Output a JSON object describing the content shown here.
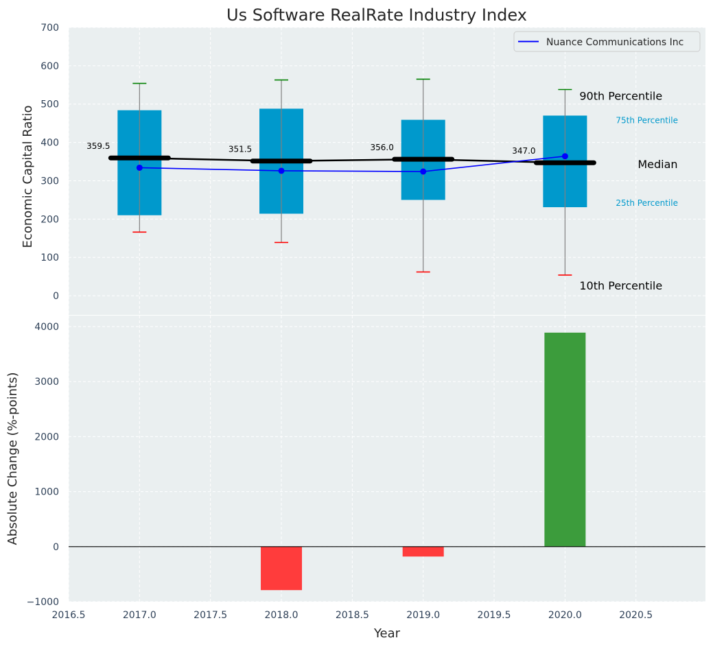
{
  "title": "Us Software RealRate Industry Index",
  "colors": {
    "panel_bg": "#EAEFF0",
    "box_fill": "#0099CC",
    "median_line": "#000000",
    "company_line": "#0000FF",
    "p90_cap": "#008000",
    "p10_cap": "#FF0000",
    "positive_bar": "#3C9C3C",
    "negative_bar": "#FF3C3C",
    "grid": "#FFFFFF",
    "tick_text": "#2E4057",
    "percentile_label_blue": "#0099CC"
  },
  "chart_data": [
    {
      "type": "box",
      "title": "Us Software RealRate Industry Index",
      "ylabel": "Economic Capital Ratio",
      "ylim": [
        -50,
        700
      ],
      "yticks": [
        "0",
        "100",
        "200",
        "300",
        "400",
        "500",
        "600",
        "700"
      ],
      "grid": true,
      "legend_placement": "top-right",
      "legend_entries": [
        "Nuance Communications Inc"
      ],
      "x": [
        2017,
        2018,
        2019,
        2020
      ],
      "percentiles": {
        "p10": [
          166,
          139,
          62,
          54
        ],
        "p25": [
          210,
          214,
          250,
          231
        ],
        "median": [
          359.5,
          351.5,
          356.0,
          347.0
        ],
        "p75": [
          484,
          488,
          459,
          470
        ],
        "p90": [
          554,
          563,
          565,
          538
        ]
      },
      "median_labels": [
        "359.5",
        "351.5",
        "356.0",
        "347.0"
      ],
      "series": [
        {
          "name": "Nuance Communications Inc",
          "values": [
            334,
            326,
            324,
            364
          ]
        }
      ],
      "annotations": {
        "p90": "90th Percentile",
        "p75": "75th Percentile",
        "median": "Median",
        "p25": "25th Percentile",
        "p10": "10th Percentile"
      }
    },
    {
      "type": "bar",
      "xlabel": "Year",
      "ylabel": "Absolute Change (%-points)",
      "ylim": [
        -1000,
        4200
      ],
      "yticks": [
        "−1000",
        "0",
        "1000",
        "2000",
        "3000",
        "4000"
      ],
      "xlim": [
        2016.5,
        2020.99
      ],
      "xticks": [
        "2016.5",
        "2017.0",
        "2017.5",
        "2018.0",
        "2018.5",
        "2019.0",
        "2019.5",
        "2020.0",
        "2020.5"
      ],
      "grid": true,
      "x": [
        2018,
        2019,
        2020
      ],
      "values": [
        -790,
        -180,
        3890
      ]
    }
  ]
}
